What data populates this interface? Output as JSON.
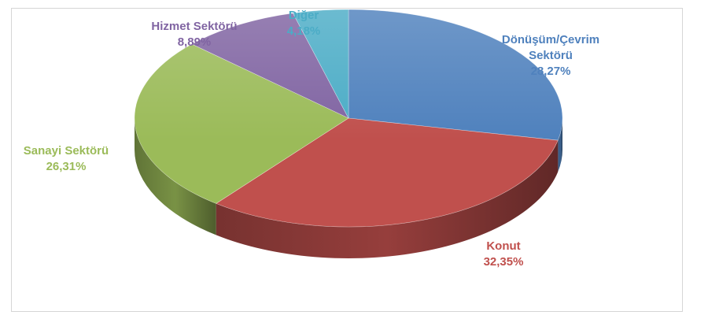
{
  "chart_data": {
    "type": "pie",
    "three_d": true,
    "title": "",
    "slices": [
      {
        "name": "Dönüşüm/Çevrim Sektörü",
        "label_lines": [
          "Dönüşüm/Çevrim",
          "Sektörü"
        ],
        "value": 28.27,
        "value_label": "28,27%",
        "color": "#4f81bd"
      },
      {
        "name": "Konut",
        "label_lines": [
          "Konut"
        ],
        "value": 32.35,
        "value_label": "32,35%",
        "color": "#c0504d"
      },
      {
        "name": "Sanayi Sektörü",
        "label_lines": [
          "Sanayi Sektörü"
        ],
        "value": 26.31,
        "value_label": "26,31%",
        "color": "#9bbb59"
      },
      {
        "name": "Hizmet Sektörü",
        "label_lines": [
          "Hizmet Sektörü"
        ],
        "value": 8.89,
        "value_label": "8,89%",
        "color": "#8064a2"
      },
      {
        "name": "Diğer",
        "label_lines": [
          "Diğer"
        ],
        "value": 4.18,
        "value_label": "4,18%",
        "color": "#4bacc6"
      }
    ]
  }
}
